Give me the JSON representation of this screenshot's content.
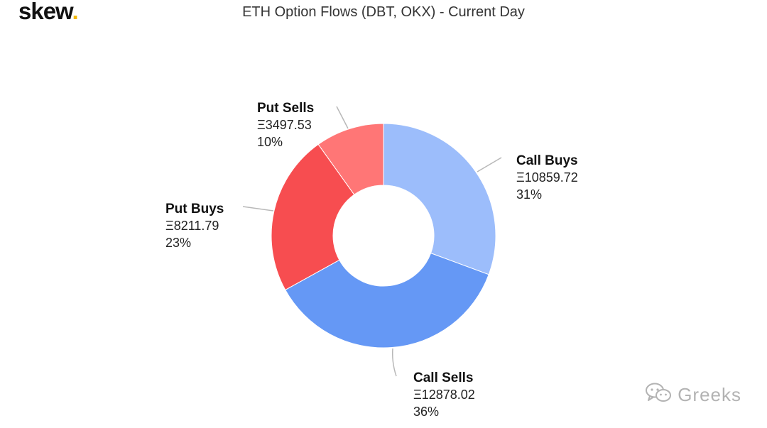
{
  "brand": {
    "name": "skew",
    "dot": "."
  },
  "watermark": {
    "text": "Greeks",
    "icon": "wechat-icon"
  },
  "colors": {
    "call_buys": "#9cbdfb",
    "call_sells": "#6598f5",
    "put_buys": "#f74d50",
    "put_sells": "#ff7676",
    "brand_dot": "#f2b705"
  },
  "chart_data": {
    "type": "pie",
    "donut": true,
    "title": "ETH Option Flows (DBT, OKX) - Current Day",
    "legend": "none",
    "slices": [
      {
        "label": "Call Buys",
        "value": 10859.72,
        "value_label": "Ξ10859.72",
        "percent_label": "31%",
        "color": "#9cbdfb"
      },
      {
        "label": "Call Sells",
        "value": 12878.02,
        "value_label": "Ξ12878.02",
        "percent_label": "36%",
        "color": "#6598f5"
      },
      {
        "label": "Put Buys",
        "value": 8211.79,
        "value_label": "Ξ8211.79",
        "percent_label": "23%",
        "color": "#f74d50"
      },
      {
        "label": "Put Sells",
        "value": 3497.53,
        "value_label": "Ξ3497.53",
        "percent_label": "10%",
        "color": "#ff7676"
      }
    ]
  }
}
